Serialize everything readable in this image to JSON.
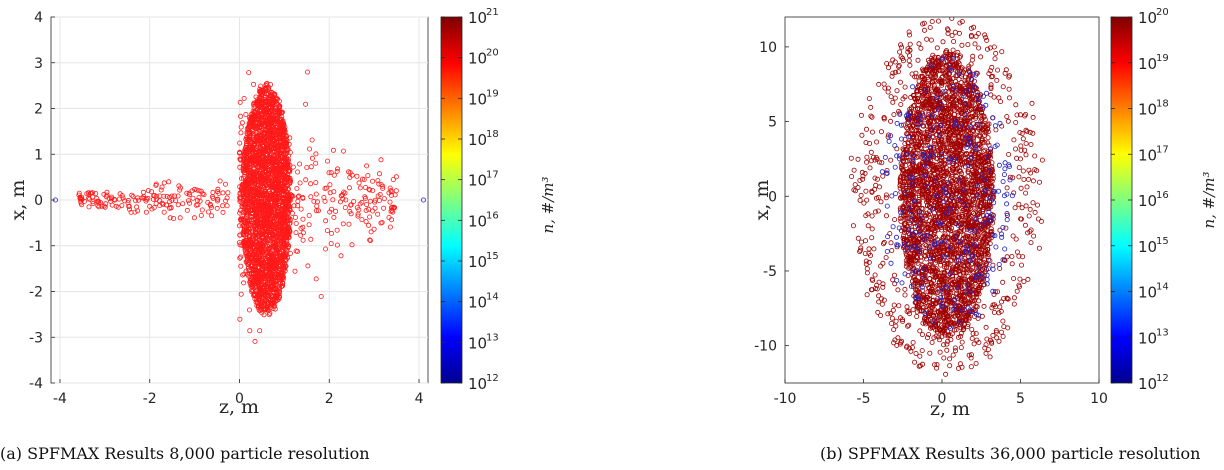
{
  "captions": {
    "a": "(a) SPFMAX Results 8,000 particle resolution",
    "b": "(b) SPFMAX Results 36,000 particle resolution"
  },
  "chart_data": [
    {
      "type": "scatter",
      "xlabel": "z, m",
      "ylabel": "x, m",
      "xlim": [
        -4.2,
        4.2
      ],
      "ylim": [
        -4,
        4
      ],
      "xticks": [
        -4,
        -2,
        0,
        2,
        4
      ],
      "yticks": [
        -4,
        -3,
        -2,
        -1,
        0,
        1,
        2,
        3,
        4
      ],
      "grid": true,
      "colorbar": {
        "label": "n, #/m³",
        "scale": "log",
        "min_exp": 12,
        "max_exp": 21,
        "tick_exps": [
          12,
          13,
          14,
          15,
          16,
          17,
          18,
          19,
          20,
          21
        ]
      },
      "series": [
        {
          "color": "#ff1a1a",
          "description_free": true,
          "clusters": [
            {
              "shape": "ellipse",
              "cx": 0.6,
              "cy": 0.0,
              "rx": 0.55,
              "ry": 2.6
            },
            {
              "shape": "fan",
              "x_from": 0.0,
              "x_to": 3.5,
              "y_spread": 2.0
            },
            {
              "shape": "tail",
              "x_from": -3.6,
              "x_to": -0.2,
              "y_spread": 0.3
            }
          ]
        },
        {
          "color": "#1f1fd0",
          "points": [
            [
              -4.1,
              0.0
            ],
            [
              4.1,
              0.0
            ]
          ]
        }
      ]
    },
    {
      "type": "scatter",
      "xlabel": "z, m",
      "ylabel": "x, m",
      "xlim": [
        -10,
        10
      ],
      "ylim": [
        -12.5,
        12
      ],
      "xticks": [
        -10,
        -5,
        0,
        5,
        10
      ],
      "yticks": [
        -10,
        -5,
        0,
        5,
        10
      ],
      "grid": false,
      "colorbar": {
        "label": "n, #/m³",
        "scale": "log",
        "min_exp": 12,
        "max_exp": 20,
        "tick_exps": [
          12,
          13,
          14,
          15,
          16,
          17,
          18,
          19,
          20
        ]
      },
      "series": [
        {
          "color": "#a00000",
          "clusters": [
            {
              "shape": "ellipse",
              "cx": 0.3,
              "cy": 0.0,
              "rx": 3.0,
              "ry": 10.0
            },
            {
              "shape": "halo",
              "cx": 0.3,
              "cy": 0.0,
              "rx": 6.5,
              "ry": 12.0
            }
          ]
        },
        {
          "color": "#2020c0",
          "clusters": [
            {
              "shape": "ellipse",
              "cx": 0.3,
              "cy": 0.0,
              "rx": 4.2,
              "ry": 9.5
            }
          ]
        }
      ]
    }
  ]
}
